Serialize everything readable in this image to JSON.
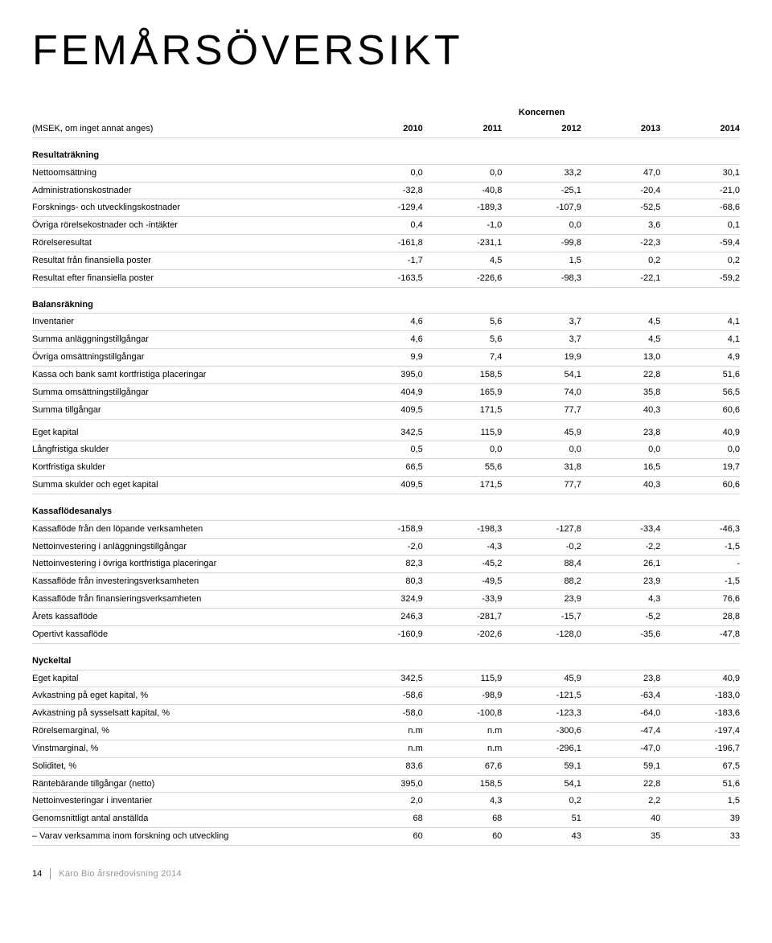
{
  "title": "FEMÅRSÖVERSIKT",
  "unit_note": "(MSEK, om inget annat anges)",
  "header_label": "Koncernen",
  "years": [
    "2010",
    "2011",
    "2012",
    "2013",
    "2014"
  ],
  "sections": [
    {
      "name": "Resultaträkning",
      "rows": [
        {
          "l": "Nettoomsättning",
          "c": [
            "0,0",
            "0,0",
            "33,2",
            "47,0",
            "30,1"
          ]
        },
        {
          "l": "Administrationskostnader",
          "c": [
            "-32,8",
            "-40,8",
            "-25,1",
            "-20,4",
            "-21,0"
          ]
        },
        {
          "l": "Forsknings- och utvecklingskostnader",
          "c": [
            "-129,4",
            "-189,3",
            "-107,9",
            "-52,5",
            "-68,6"
          ]
        },
        {
          "l": "Övriga rörelsekostnader och -intäkter",
          "c": [
            "0,4",
            "-1,0",
            "0,0",
            "3,6",
            "0,1"
          ]
        },
        {
          "l": "Rörelseresultat",
          "c": [
            "-161,8",
            "-231,1",
            "-99,8",
            "-22,3",
            "-59,4"
          ]
        },
        {
          "l": "Resultat från finansiella poster",
          "c": [
            "-1,7",
            "4,5",
            "1,5",
            "0,2",
            "0,2"
          ]
        },
        {
          "l": "Resultat efter finansiella poster",
          "c": [
            "-163,5",
            "-226,6",
            "-98,3",
            "-22,1",
            "-59,2"
          ]
        }
      ]
    },
    {
      "name": "Balansräkning",
      "rows": [
        {
          "l": "Inventarier",
          "c": [
            "4,6",
            "5,6",
            "3,7",
            "4,5",
            "4,1"
          ]
        },
        {
          "l": "Summa anläggningstillgångar",
          "c": [
            "4,6",
            "5,6",
            "3,7",
            "4,5",
            "4,1"
          ]
        },
        {
          "l": "Övriga omsättningstillgångar",
          "c": [
            "9,9",
            "7,4",
            "19,9",
            "13,0",
            "4,9"
          ]
        },
        {
          "l": "Kassa och bank samt kortfristiga placeringar",
          "c": [
            "395,0",
            "158,5",
            "54,1",
            "22,8",
            "51,6"
          ]
        },
        {
          "l": "Summa omsättningstillgångar",
          "c": [
            "404,9",
            "165,9",
            "74,0",
            "35,8",
            "56,5"
          ]
        },
        {
          "l": "Summa tillgångar",
          "c": [
            "409,5",
            "171,5",
            "77,7",
            "40,3",
            "60,6"
          ]
        }
      ]
    },
    {
      "name": "",
      "rows": [
        {
          "l": "Eget kapital",
          "c": [
            "342,5",
            "115,9",
            "45,9",
            "23,8",
            "40,9"
          ]
        },
        {
          "l": "Långfristiga skulder",
          "c": [
            "0,5",
            "0,0",
            "0,0",
            "0,0",
            "0,0"
          ]
        },
        {
          "l": "Kortfristiga skulder",
          "c": [
            "66,5",
            "55,6",
            "31,8",
            "16,5",
            "19,7"
          ]
        },
        {
          "l": "Summa skulder och eget kapital",
          "c": [
            "409,5",
            "171,5",
            "77,7",
            "40,3",
            "60,6"
          ]
        }
      ]
    },
    {
      "name": "Kassaflödesanalys",
      "rows": [
        {
          "l": "Kassaflöde från den löpande verksamheten",
          "c": [
            "-158,9",
            "-198,3",
            "-127,8",
            "-33,4",
            "-46,3"
          ]
        },
        {
          "l": "Nettoinvestering i anläggningstillgångar",
          "c": [
            "-2,0",
            "-4,3",
            "-0,2",
            "-2,2",
            "-1,5"
          ]
        },
        {
          "l": "Nettoinvestering i övriga kortfristiga placeringar",
          "c": [
            "82,3",
            "-45,2",
            "88,4",
            "26,1",
            "-"
          ]
        },
        {
          "l": "Kassaflöde från investeringsverksamheten",
          "c": [
            "80,3",
            "-49,5",
            "88,2",
            "23,9",
            "-1,5"
          ]
        },
        {
          "l": "Kassaflöde från finansieringsverksamheten",
          "c": [
            "324,9",
            "-33,9",
            "23,9",
            "4,3",
            "76,6"
          ]
        },
        {
          "l": "Årets kassaflöde",
          "c": [
            "246,3",
            "-281,7",
            "-15,7",
            "-5,2",
            "28,8"
          ]
        },
        {
          "l": "Opertivt kassaflöde",
          "c": [
            "-160,9",
            "-202,6",
            "-128,0",
            "-35,6",
            "-47,8"
          ]
        }
      ]
    },
    {
      "name": "Nyckeltal",
      "rows": [
        {
          "l": "Eget kapital",
          "c": [
            "342,5",
            "115,9",
            "45,9",
            "23,8",
            "40,9"
          ]
        },
        {
          "l": "Avkastning på eget kapital, %",
          "c": [
            "-58,6",
            "-98,9",
            "-121,5",
            "-63,4",
            "-183,0"
          ]
        },
        {
          "l": "Avkastning på sysselsatt kapital, %",
          "c": [
            "-58,0",
            "-100,8",
            "-123,3",
            "-64,0",
            "-183,6"
          ]
        },
        {
          "l": "Rörelsemarginal, %",
          "c": [
            "n.m",
            "n.m",
            "-300,6",
            "-47,4",
            "-197,4"
          ]
        },
        {
          "l": "Vinstmarginal, %",
          "c": [
            "n.m",
            "n.m",
            "-296,1",
            "-47,0",
            "-196,7"
          ]
        },
        {
          "l": "Soliditet, %",
          "c": [
            "83,6",
            "67,6",
            "59,1",
            "59,1",
            "67,5"
          ]
        },
        {
          "l": "Räntebärande tillgångar (netto)",
          "c": [
            "395,0",
            "158,5",
            "54,1",
            "22,8",
            "51,6"
          ]
        },
        {
          "l": "Nettoinvesteringar i inventarier",
          "c": [
            "2,0",
            "4,3",
            "0,2",
            "2,2",
            "1,5"
          ]
        },
        {
          "l": "Genomsnittligt antal anställda",
          "c": [
            "68",
            "68",
            "51",
            "40",
            "39"
          ]
        },
        {
          "l": "– Varav verksamma inom forskning och utveckling",
          "c": [
            "60",
            "60",
            "43",
            "35",
            "33"
          ]
        }
      ]
    }
  ],
  "pagenum": "14",
  "doclabel": "Karo Bio årsredovisning 2014"
}
